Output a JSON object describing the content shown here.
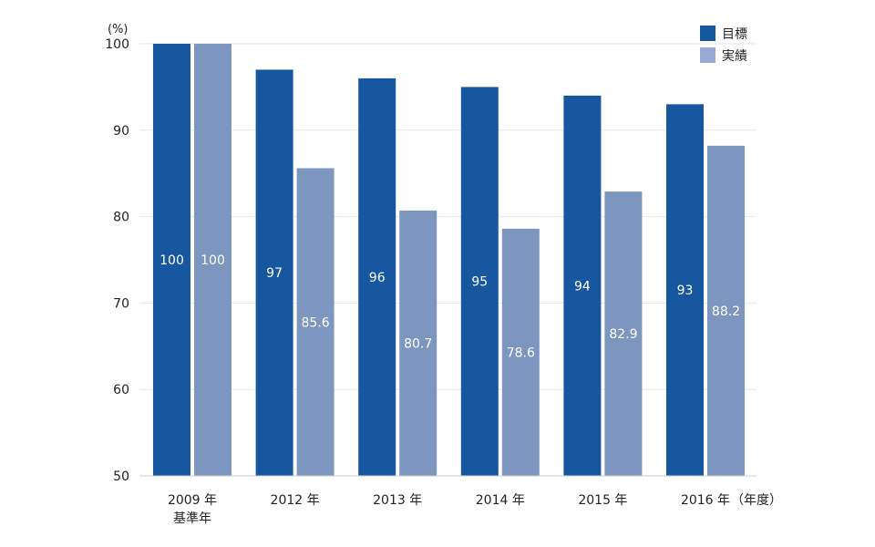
{
  "chart_data": {
    "type": "bar",
    "y_unit_label": "(%)",
    "x_unit_label": "（年度）",
    "categories": [
      "2009 年",
      "2012 年",
      "2013 年",
      "2014 年",
      "2015 年",
      "2016 年"
    ],
    "category_sublabels": [
      "基準年",
      "",
      "",
      "",
      "",
      ""
    ],
    "series": [
      {
        "name": "目標",
        "values": [
          100,
          97,
          96,
          95,
          94,
          93
        ],
        "labels": [
          "100",
          "97",
          "96",
          "95",
          "94",
          "93"
        ],
        "color": "#1757a0"
      },
      {
        "name": "実績",
        "values": [
          100,
          85.6,
          80.7,
          78.6,
          82.9,
          88.2
        ],
        "labels": [
          "100",
          "85.6",
          "80.7",
          "78.6",
          "82.9",
          "88.2"
        ],
        "color": "#7d96bf"
      }
    ],
    "ylim": [
      50,
      100
    ],
    "yticks": [
      50,
      60,
      70,
      80,
      90,
      100
    ],
    "ytick_labels": [
      "50",
      "60",
      "70",
      "80",
      "90",
      "100"
    ],
    "grid": true,
    "legend_position": "top-right",
    "legend_colors": [
      "#1757a0",
      "#9aaad6"
    ]
  }
}
